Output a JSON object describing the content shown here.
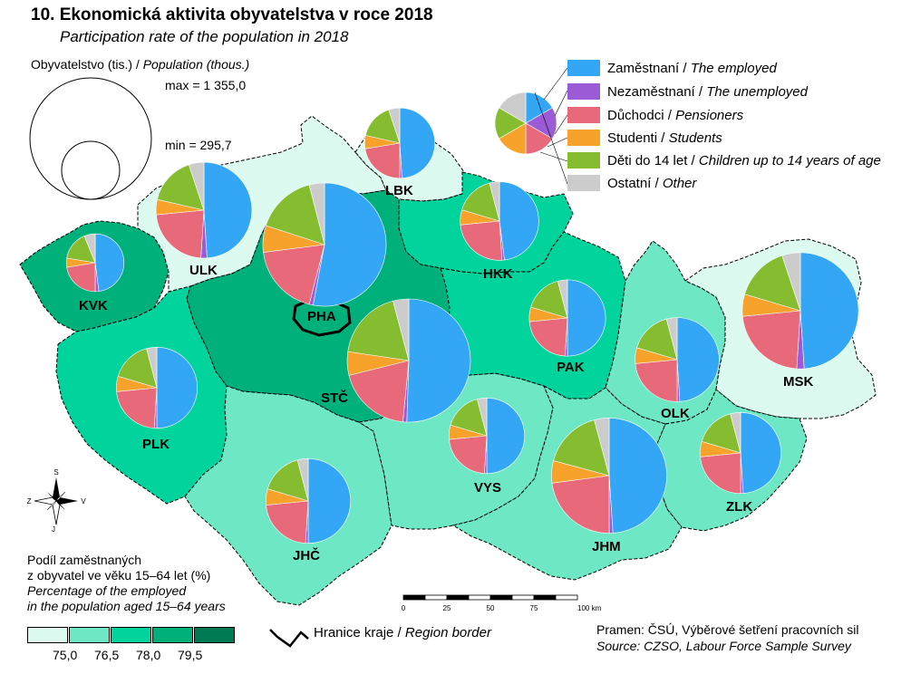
{
  "title": "10. Ekonomická aktivita obyvatelstva v roce 2018",
  "subtitle": "Participation rate of the population in 2018",
  "population_legend": {
    "title_cz": "Obyvatelstvo (tis.)",
    "title_en": "Population (thous.)",
    "max_label": "max = 1 355,0",
    "min_label": "min = 295,7"
  },
  "categories": [
    {
      "cz": "Zaměstnaní",
      "en": "The employed",
      "color": "#33a6f5"
    },
    {
      "cz": "Nezaměstnaní",
      "en": "The unemployed",
      "color": "#9b5ad6"
    },
    {
      "cz": "Důchodci",
      "en": "Pensioners",
      "color": "#e8697a"
    },
    {
      "cz": "Studenti",
      "en": "Students",
      "color": "#f7a22b"
    },
    {
      "cz": "Děti do 14 let",
      "en": "Children up to 14 years of age",
      "color": "#86bd30"
    },
    {
      "cz": "Ostatní",
      "en": "Other",
      "color": "#cccccc"
    }
  ],
  "share_legend": {
    "line1": "Podíl zaměstnaných",
    "line2": "z obyvatel ve věku 15–64 let (%)",
    "line3": "Percentage of the employed",
    "line4": "in the population aged 15–64 years",
    "bin_colors": [
      "#dcfaf0",
      "#6ee8c4",
      "#00d49c",
      "#00b07a",
      "#007a55"
    ],
    "breaks": [
      "75,0",
      "76,5",
      "78,0",
      "79,5"
    ]
  },
  "border_legend": {
    "cz": "Hranice kraje",
    "en": "Region border"
  },
  "scale_bar": {
    "ticks": [
      "0",
      "25",
      "50",
      "75",
      "100 km"
    ]
  },
  "compass": {
    "n": "S",
    "s": "J",
    "w": "Z",
    "e": "V"
  },
  "source": {
    "cz": "Pramen: ČSÚ, Výběrové šetření pracovních sil",
    "en": "Source: CZSO, Labour Force Sample Survey"
  },
  "regions": [
    {
      "code": "PHA",
      "fill": "#00b07a"
    },
    {
      "code": "STČ",
      "fill": "#00b07a"
    },
    {
      "code": "JHČ",
      "fill": "#6ee8c4"
    },
    {
      "code": "PLK",
      "fill": "#00d49c"
    },
    {
      "code": "KVK",
      "fill": "#00b07a"
    },
    {
      "code": "ULK",
      "fill": "#dcfaf0"
    },
    {
      "code": "LBK",
      "fill": "#dcfaf0"
    },
    {
      "code": "HKK",
      "fill": "#00d49c"
    },
    {
      "code": "PAK",
      "fill": "#00d49c"
    },
    {
      "code": "VYS",
      "fill": "#6ee8c4"
    },
    {
      "code": "JHM",
      "fill": "#6ee8c4"
    },
    {
      "code": "OLK",
      "fill": "#6ee8c4"
    },
    {
      "code": "ZLK",
      "fill": "#6ee8c4"
    },
    {
      "code": "MSK",
      "fill": "#dcfaf0"
    }
  ],
  "pies": [
    {
      "code": "PHA",
      "population": 1355.0,
      "shares": [
        53,
        1,
        19,
        7,
        16,
        4
      ]
    },
    {
      "code": "STČ",
      "population": 1355.0,
      "shares": [
        49,
        1,
        19,
        6,
        18,
        4
      ]
    },
    {
      "code": "JHM",
      "population": 1185.0,
      "shares": [
        47,
        1,
        22,
        6,
        16,
        4
      ]
    },
    {
      "code": "MSK",
      "population": 1205.0,
      "shares": [
        48,
        2,
        22,
        6,
        15,
        5
      ]
    },
    {
      "code": "ULK",
      "population": 820.0,
      "shares": [
        48,
        2,
        22,
        5,
        16,
        5
      ]
    },
    {
      "code": "JHČ",
      "population": 640.0,
      "shares": [
        49,
        1,
        22,
        6,
        16,
        4
      ]
    },
    {
      "code": "PLK",
      "population": 585.0,
      "shares": [
        49,
        1,
        22,
        6,
        16,
        4
      ]
    },
    {
      "code": "HKK",
      "population": 550.0,
      "shares": [
        47,
        1,
        24,
        6,
        16,
        4
      ]
    },
    {
      "code": "OLK",
      "population": 630.0,
      "shares": [
        48,
        1,
        23,
        6,
        16,
        4
      ]
    },
    {
      "code": "ZLK",
      "population": 585.0,
      "shares": [
        48,
        1,
        23,
        6,
        16,
        4
      ]
    },
    {
      "code": "PAK",
      "population": 520.0,
      "shares": [
        49,
        1,
        22,
        6,
        16,
        4
      ]
    },
    {
      "code": "VYS",
      "population": 510.0,
      "shares": [
        49,
        1,
        22,
        6,
        16,
        4
      ]
    },
    {
      "code": "LBK",
      "population": 440.0,
      "shares": [
        48,
        1,
        22,
        6,
        16,
        5
      ]
    },
    {
      "code": "KVK",
      "population": 295.7,
      "shares": [
        47,
        2,
        22,
        5,
        16,
        6
      ]
    }
  ]
}
